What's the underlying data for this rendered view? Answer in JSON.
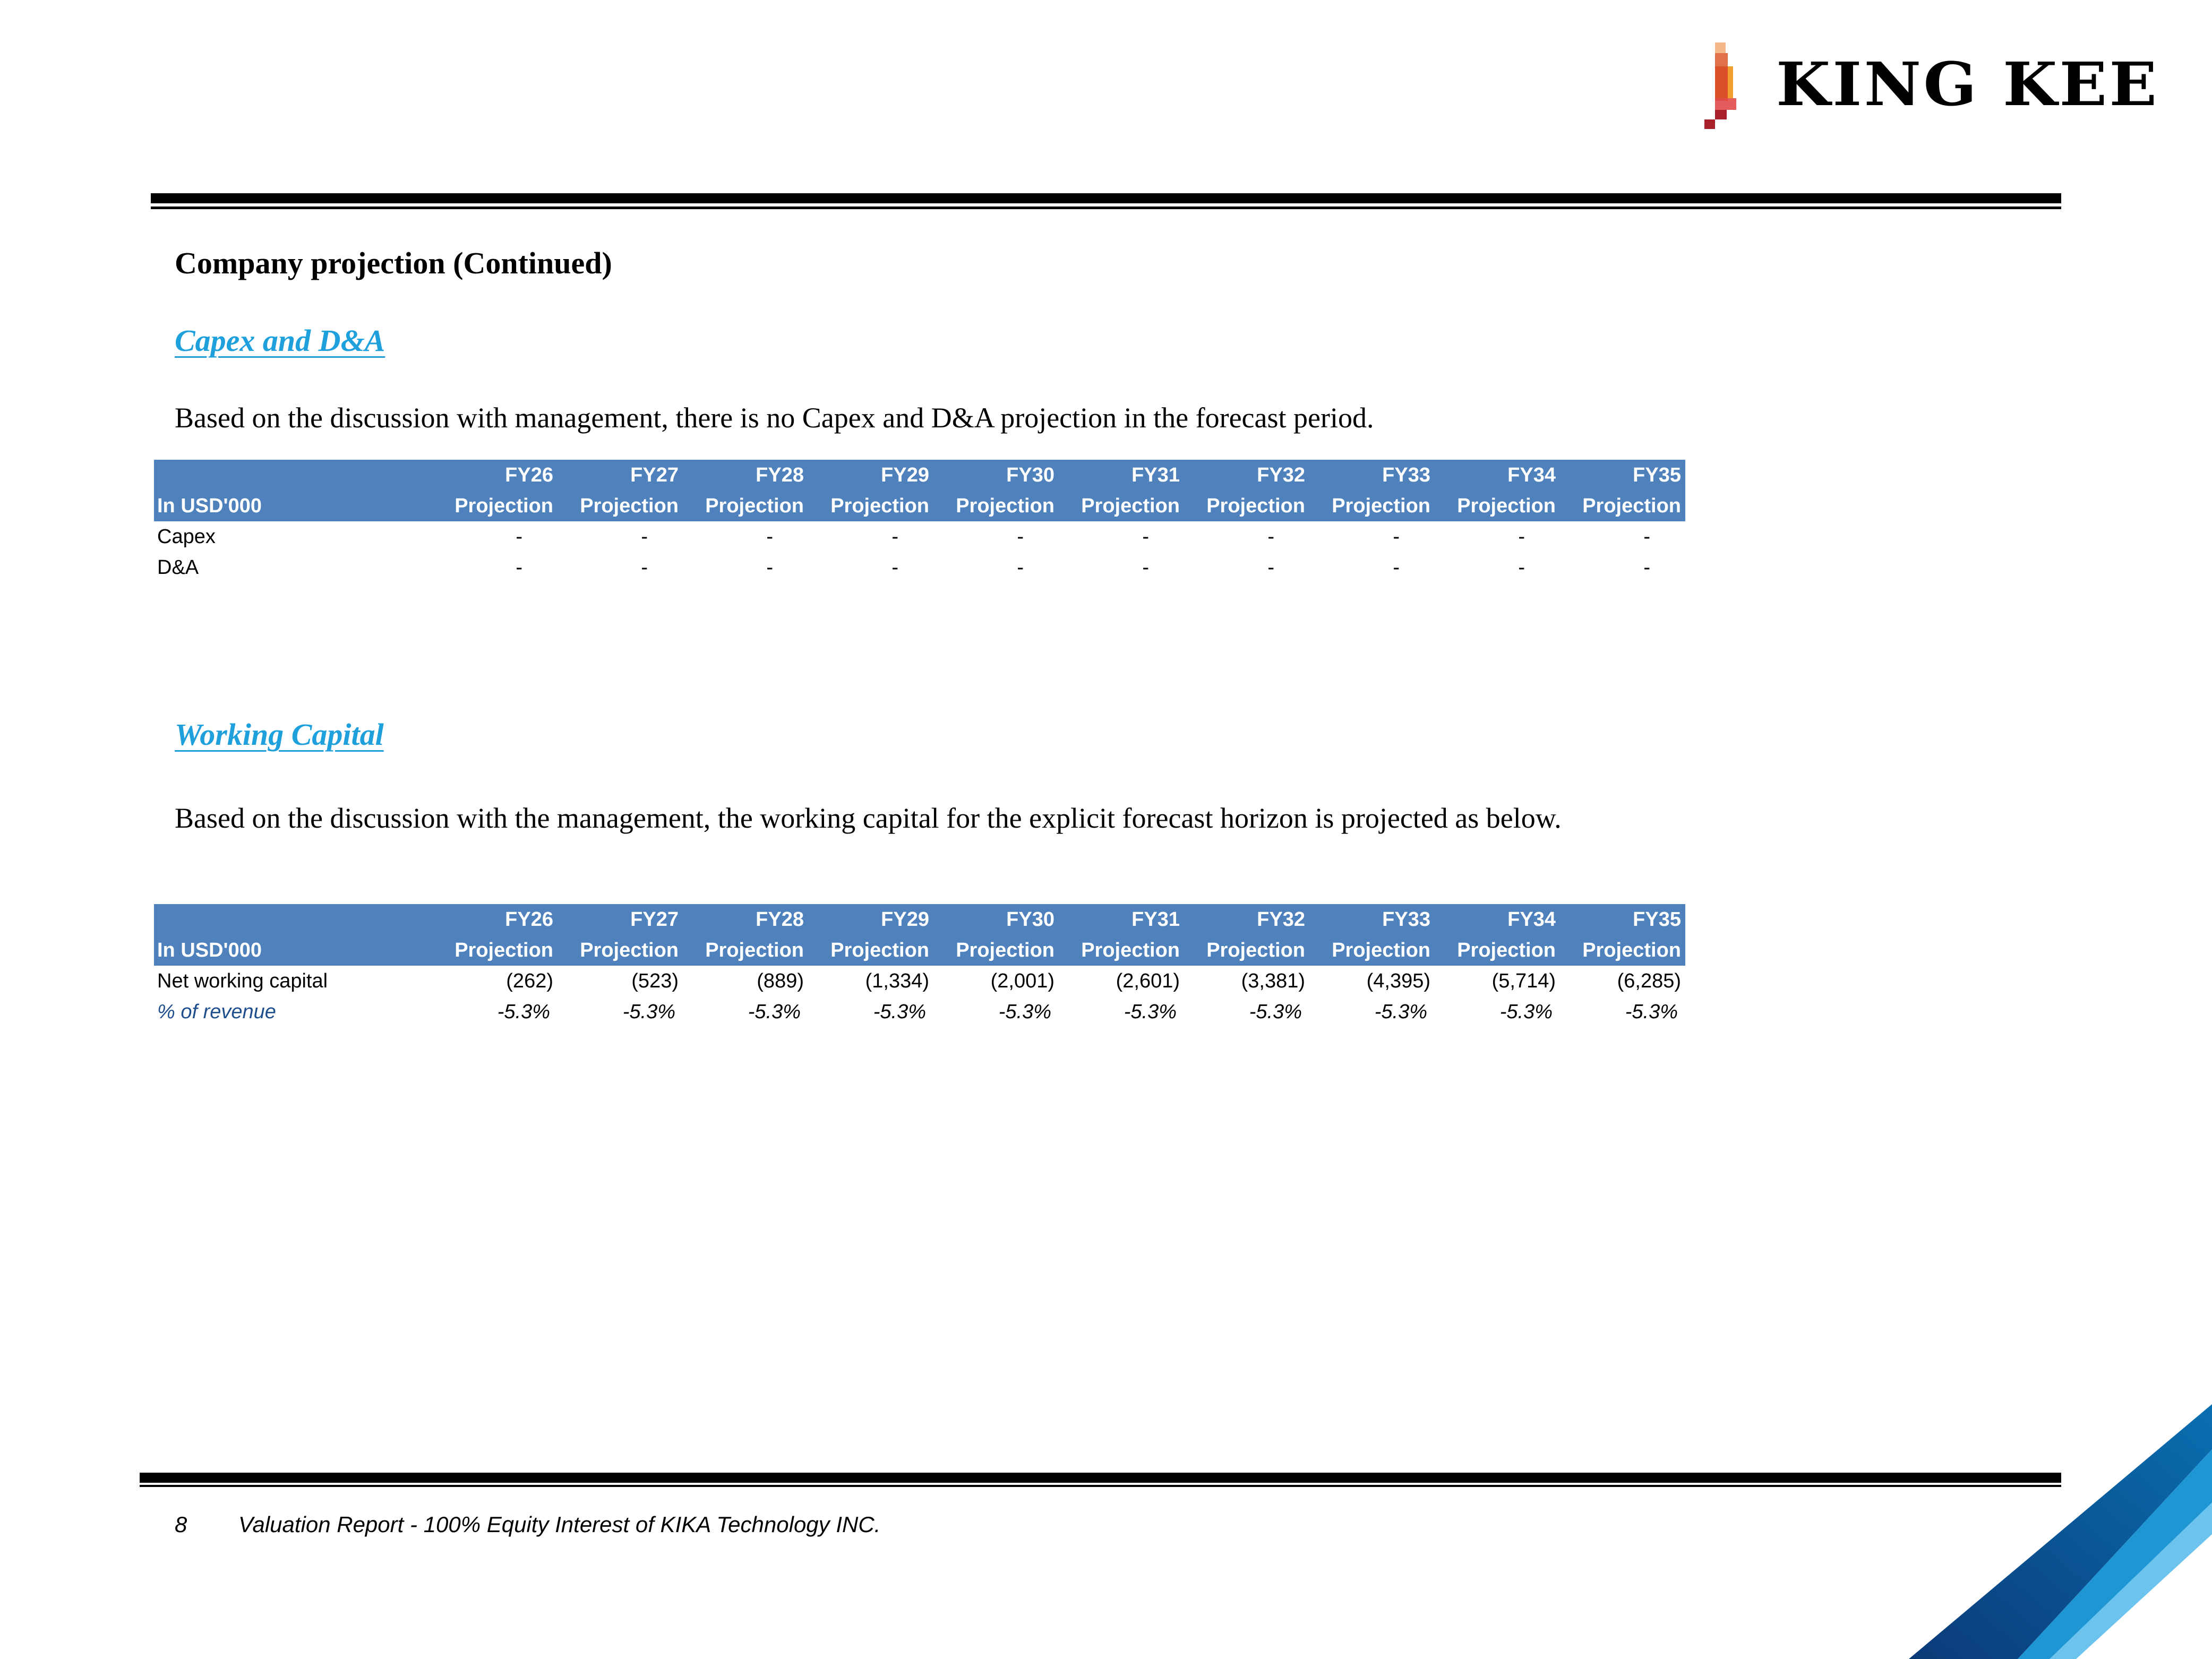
{
  "logo": {
    "text": "KING KEE",
    "colors": [
      "#f5b88a",
      "#e0714a",
      "#d9502a",
      "#f0a030",
      "#d42a2a",
      "#a8202a"
    ]
  },
  "title": "Company projection (Continued)",
  "capex_section": {
    "heading": "Capex and D&A",
    "paragraph": "Based on the discussion with management, there is no Capex and D&A projection in the forecast period.",
    "table": {
      "unit_label": "In USD'000",
      "years": [
        "FY26",
        "FY27",
        "FY28",
        "FY29",
        "FY30",
        "FY31",
        "FY32",
        "FY33",
        "FY34",
        "FY35"
      ],
      "sub_label": "Projection",
      "rows": [
        {
          "label": "Capex",
          "values": [
            "-",
            "-",
            "-",
            "-",
            "-",
            "-",
            "-",
            "-",
            "-",
            "-"
          ]
        },
        {
          "label": "D&A",
          "values": [
            "-",
            "-",
            "-",
            "-",
            "-",
            "-",
            "-",
            "-",
            "-",
            "-"
          ]
        }
      ]
    }
  },
  "wc_section": {
    "heading": "Working Capital",
    "paragraph": "Based on the discussion with the management, the working capital for the explicit forecast horizon is projected as below.",
    "table": {
      "unit_label": "In USD'000",
      "years": [
        "FY26",
        "FY27",
        "FY28",
        "FY29",
        "FY30",
        "FY31",
        "FY32",
        "FY33",
        "FY34",
        "FY35"
      ],
      "sub_label": "Projection",
      "rows": [
        {
          "label": "Net working capital",
          "values": [
            "(262)",
            "(523)",
            "(889)",
            "(1,334)",
            "(2,001)",
            "(2,601)",
            "(3,381)",
            "(4,395)",
            "(5,714)",
            "(6,285)"
          ]
        },
        {
          "label": "% of revenue",
          "values": [
            "-5.3%",
            "-5.3%",
            "-5.3%",
            "-5.3%",
            "-5.3%",
            "-5.3%",
            "-5.3%",
            "-5.3%",
            "-5.3%",
            "-5.3%"
          ]
        }
      ]
    }
  },
  "footer": {
    "page_number": "8",
    "text": "Valuation Report - 100% Equity Interest of KIKA Technology INC."
  },
  "colors": {
    "header_fill": "#4f81bd",
    "heading_link": "#1ea0dc",
    "pct_label": "#1f4e8c"
  }
}
